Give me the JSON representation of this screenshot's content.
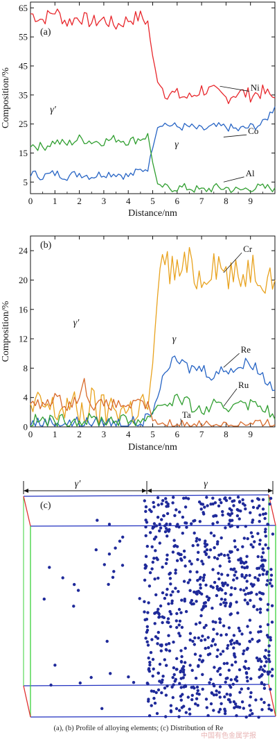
{
  "chart_data": [
    {
      "type": "line",
      "panel_label": "(a)",
      "xlabel": "Distance/nm",
      "ylabel": "Composition/%",
      "xlim": [
        0,
        10
      ],
      "ylim": [
        1,
        67
      ],
      "xticks": [
        0,
        1,
        2,
        3,
        4,
        5,
        6,
        7,
        8,
        9
      ],
      "yticks": [
        5,
        15,
        25,
        35,
        45,
        55,
        65
      ],
      "phase_labels": [
        "γ′",
        "γ"
      ],
      "series": [
        {
          "name": "Ni",
          "color": "#e8262b",
          "x": [
            0,
            0.5,
            1,
            1.5,
            2,
            2.5,
            3,
            3.5,
            4,
            4.5,
            4.8,
            5.0,
            5.2,
            5.5,
            6,
            6.5,
            7,
            7.5,
            8,
            8.5,
            9,
            9.5,
            10
          ],
          "values": [
            63,
            61,
            64,
            60,
            62,
            60,
            61,
            59,
            61,
            62,
            60,
            48,
            40,
            36,
            35,
            34,
            37,
            36,
            34,
            36,
            35,
            36,
            34
          ]
        },
        {
          "name": "Co",
          "color": "#2563c4",
          "x": [
            0,
            0.5,
            1,
            1.5,
            2,
            2.5,
            3,
            3.5,
            4,
            4.5,
            4.8,
            5.0,
            5.2,
            5.5,
            6,
            6.5,
            7,
            7.5,
            8,
            8.5,
            9,
            9.5,
            10
          ],
          "values": [
            8,
            7,
            8,
            7,
            8,
            7,
            8,
            8,
            7,
            9,
            10,
            17,
            24,
            25,
            24,
            24,
            23,
            24,
            24,
            23,
            24,
            25,
            31
          ]
        },
        {
          "name": "Al",
          "color": "#2f9e2f",
          "x": [
            0,
            0.5,
            1,
            1.5,
            2,
            2.5,
            3,
            3.5,
            4,
            4.5,
            4.8,
            5.0,
            5.2,
            5.5,
            6,
            6.5,
            7,
            7.5,
            8,
            8.5,
            9,
            9.5,
            10
          ],
          "values": [
            18,
            17,
            19,
            18,
            20,
            19,
            19,
            20,
            19,
            20,
            21,
            12,
            4,
            3,
            3,
            3,
            2,
            3,
            3,
            2,
            3,
            3,
            3
          ]
        }
      ],
      "annotations": [
        "Ni",
        "Co",
        "Al"
      ]
    },
    {
      "type": "line",
      "panel_label": "(b)",
      "xlabel": "Distance/nm",
      "ylabel": "Composition/%",
      "xlim": [
        0,
        10
      ],
      "ylim": [
        0,
        26
      ],
      "xticks": [
        0,
        1,
        2,
        3,
        4,
        5,
        6,
        7,
        8,
        9
      ],
      "yticks": [
        0,
        4,
        8,
        12,
        16,
        20,
        24
      ],
      "phase_labels": [
        "γ′",
        "γ"
      ],
      "series": [
        {
          "name": "Cr",
          "color": "#e8a21e",
          "x": [
            0,
            0.5,
            1,
            1.5,
            2,
            2.5,
            3,
            3.5,
            4,
            4.5,
            4.8,
            5.0,
            5.2,
            5.4,
            5.6,
            6,
            6.5,
            7,
            7.5,
            8,
            8.5,
            9,
            9.5,
            10
          ],
          "values": [
            2,
            3,
            2,
            3,
            2,
            3,
            2,
            3,
            2,
            3,
            3,
            8,
            18,
            24,
            22,
            21,
            22,
            20,
            23,
            21,
            20,
            22,
            21,
            20
          ]
        },
        {
          "name": "Re",
          "color": "#2563c4",
          "x": [
            0,
            0.5,
            1,
            1.5,
            2,
            2.5,
            3,
            3.5,
            4,
            4.5,
            4.8,
            5.0,
            5.2,
            5.5,
            6,
            6.5,
            7,
            7.5,
            8,
            8.5,
            9,
            9.5,
            10
          ],
          "values": [
            0.5,
            0.5,
            0.6,
            0.5,
            0.6,
            0.5,
            0.6,
            0.5,
            0.5,
            0.6,
            1,
            2,
            4,
            8,
            9,
            8,
            8,
            7,
            8,
            8,
            9,
            7,
            5
          ]
        },
        {
          "name": "Ru",
          "color": "#2f9e2f",
          "x": [
            0,
            0.5,
            1,
            1.5,
            2,
            2.5,
            3,
            3.5,
            4,
            4.5,
            4.8,
            5.0,
            5.2,
            5.5,
            6,
            6.5,
            7,
            7.5,
            8,
            8.5,
            9,
            9.5,
            10
          ],
          "values": [
            0.8,
            0.9,
            0.7,
            1,
            0.8,
            1,
            0.9,
            1,
            0.8,
            1,
            1,
            2,
            3,
            3,
            4,
            3,
            2,
            3,
            2,
            4,
            3,
            3,
            1
          ]
        },
        {
          "name": "Ta",
          "color": "#d86a2a",
          "x": [
            0,
            0.5,
            1,
            1.5,
            2,
            2.2,
            2.5,
            3,
            3.5,
            4,
            4.5,
            4.8,
            5.0,
            5.2,
            5.5,
            6,
            6.5,
            7,
            7.5,
            8,
            8.5,
            9,
            9.5,
            10
          ],
          "values": [
            3,
            3,
            4,
            3,
            4,
            6,
            3,
            3,
            3,
            3,
            3,
            3,
            1,
            0.5,
            0.3,
            0.3,
            0.4,
            0.3,
            0.3,
            0.4,
            0.3,
            0.3,
            0.3,
            0.3
          ]
        }
      ],
      "annotations": [
        "Cr",
        "Re",
        "Ru",
        "Ta"
      ]
    }
  ],
  "panel_c": {
    "panel_label": "(c)",
    "phase_labels": [
      "γ′",
      "γ"
    ],
    "box_color": "#1f2fbf",
    "edge_green": "#3ad13a",
    "edge_red": "#e03030",
    "atom_color": "#1f2a9a",
    "gamma_prime_atoms": 28,
    "gamma_atoms": 780
  },
  "caption": "(a), (b) Profile of alloying elements; (c) Distribution of Re",
  "watermark": "中国有色金属学报"
}
